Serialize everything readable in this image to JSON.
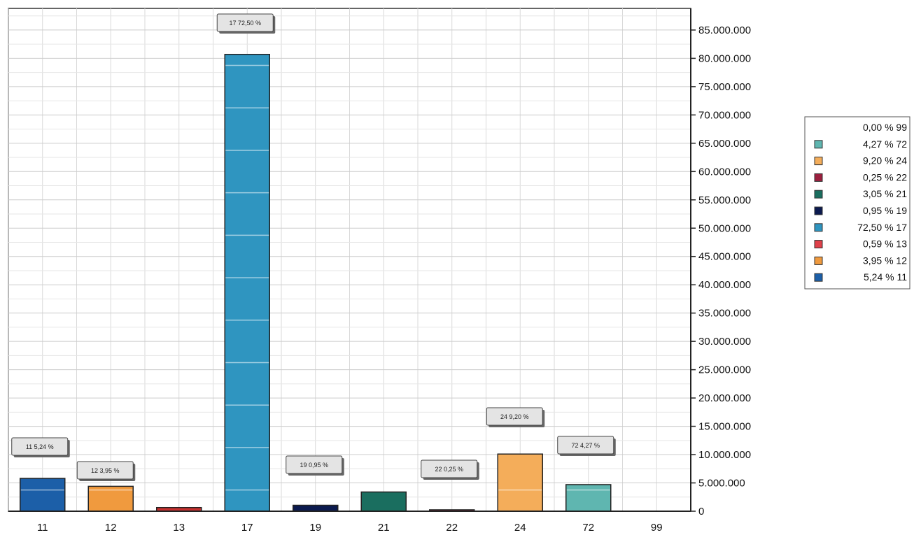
{
  "chart_data": {
    "type": "bar",
    "categories": [
      "11",
      "12",
      "13",
      "17",
      "19",
      "21",
      "22",
      "24",
      "72",
      "99"
    ],
    "values": [
      5800000,
      4400000,
      650000,
      80700000,
      1050000,
      3400000,
      250000,
      10100000,
      4700000,
      0
    ],
    "data_labels": [
      "11 5,24 %",
      "12 3,95 %",
      "",
      "17 72,50 %",
      "19 0,95 %",
      "",
      "22 0,25 %",
      "24 9,20 %",
      "72 4,27 %",
      ""
    ],
    "colors": [
      "#1c5fa8",
      "#f09a3e",
      "#c8302f",
      "#2f95c0",
      "#0b1a4f",
      "#1a6e5f",
      "#9b1f3e",
      "#f4ad5a",
      "#5fb6b0",
      "#ffffff"
    ],
    "y_axis": {
      "position": "right",
      "ylim": [
        0,
        90000000
      ],
      "ticks": [
        0,
        5000000,
        10000000,
        15000000,
        20000000,
        25000000,
        30000000,
        35000000,
        40000000,
        45000000,
        50000000,
        55000000,
        60000000,
        65000000,
        70000000,
        75000000,
        80000000,
        85000000
      ],
      "tick_labels": [
        "0",
        "5.000.000",
        "10.000.000",
        "15.000.000",
        "20.000.000",
        "25.000.000",
        "30.000.000",
        "35.000.000",
        "40.000.000",
        "45.000.000",
        "50.000.000",
        "55.000.000",
        "60.000.000",
        "65.000.000",
        "70.000.000",
        "75.000.000",
        "80.000.000",
        "85.000.000"
      ]
    },
    "grid": true,
    "legend": {
      "placement": "right",
      "entries": [
        {
          "label": "0,00 % 99",
          "color": "#ffffff"
        },
        {
          "label": "4,27 % 72",
          "color": "#5fb6b0"
        },
        {
          "label": "9,20 % 24",
          "color": "#f4ad5a"
        },
        {
          "label": "0,25 % 22",
          "color": "#9b1f3e"
        },
        {
          "label": "3,05 % 21",
          "color": "#1a6e5f"
        },
        {
          "label": "0,95 % 19",
          "color": "#0b1a4f"
        },
        {
          "label": "72,50 % 17",
          "color": "#2f95c0"
        },
        {
          "label": "0,59 % 13",
          "color": "#e0404a"
        },
        {
          "label": "3,95 % 12",
          "color": "#f09a3e"
        },
        {
          "label": "5,24 % 11",
          "color": "#1c5fa8"
        }
      ]
    }
  }
}
